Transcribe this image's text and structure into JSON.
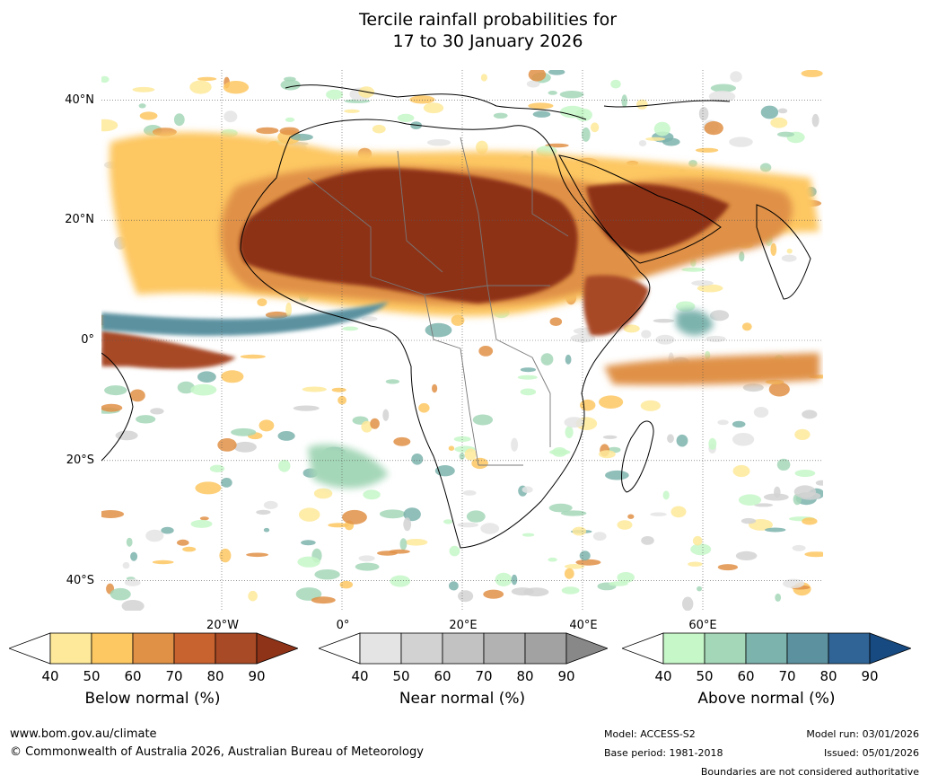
{
  "title": {
    "line1": "Tercile rainfall probabilities for",
    "line2": "17 to 30 January 2026"
  },
  "map": {
    "lat_labels": [
      "40°N",
      "20°N",
      "0°",
      "20°S",
      "40°S"
    ],
    "lon_labels": [
      "20°W",
      "0°",
      "20°E",
      "40°E",
      "60°E"
    ],
    "lon_range": [
      -40,
      80
    ],
    "lat_range": [
      -45,
      45
    ],
    "gridlines": true
  },
  "legends": [
    {
      "title": "Below normal (%)",
      "ticks": [
        "40",
        "50",
        "60",
        "70",
        "80",
        "90"
      ],
      "colors": [
        "#ffffff",
        "#fee99a",
        "#fdc762",
        "#e09146",
        "#c8622f",
        "#a84a25",
        "#8e3218"
      ]
    },
    {
      "title": "Near normal (%)",
      "ticks": [
        "40",
        "50",
        "60",
        "70",
        "80",
        "90"
      ],
      "colors": [
        "#ffffff",
        "#e4e4e4",
        "#d2d2d2",
        "#c2c2c2",
        "#b2b2b2",
        "#a2a2a2",
        "#888888"
      ]
    },
    {
      "title": "Above normal (%)",
      "ticks": [
        "40",
        "50",
        "60",
        "70",
        "80",
        "90"
      ],
      "colors": [
        "#ffffff",
        "#c6f7c8",
        "#a4d7b8",
        "#7db3ad",
        "#5c92a0",
        "#306496",
        "#174a80"
      ]
    }
  ],
  "footer": {
    "website": "www.bom.gov.au/climate",
    "copyright": "© Commonwealth of Australia 2026, Australian Bureau of Meteorology",
    "model": "Model: ACCESS-S2",
    "base_period": "Base period: 1981-2018",
    "model_run": "Model run: 03/01/2026",
    "issued": "Issued: 05/01/2026",
    "disclaimer": "Boundaries are not considered authoritative"
  }
}
